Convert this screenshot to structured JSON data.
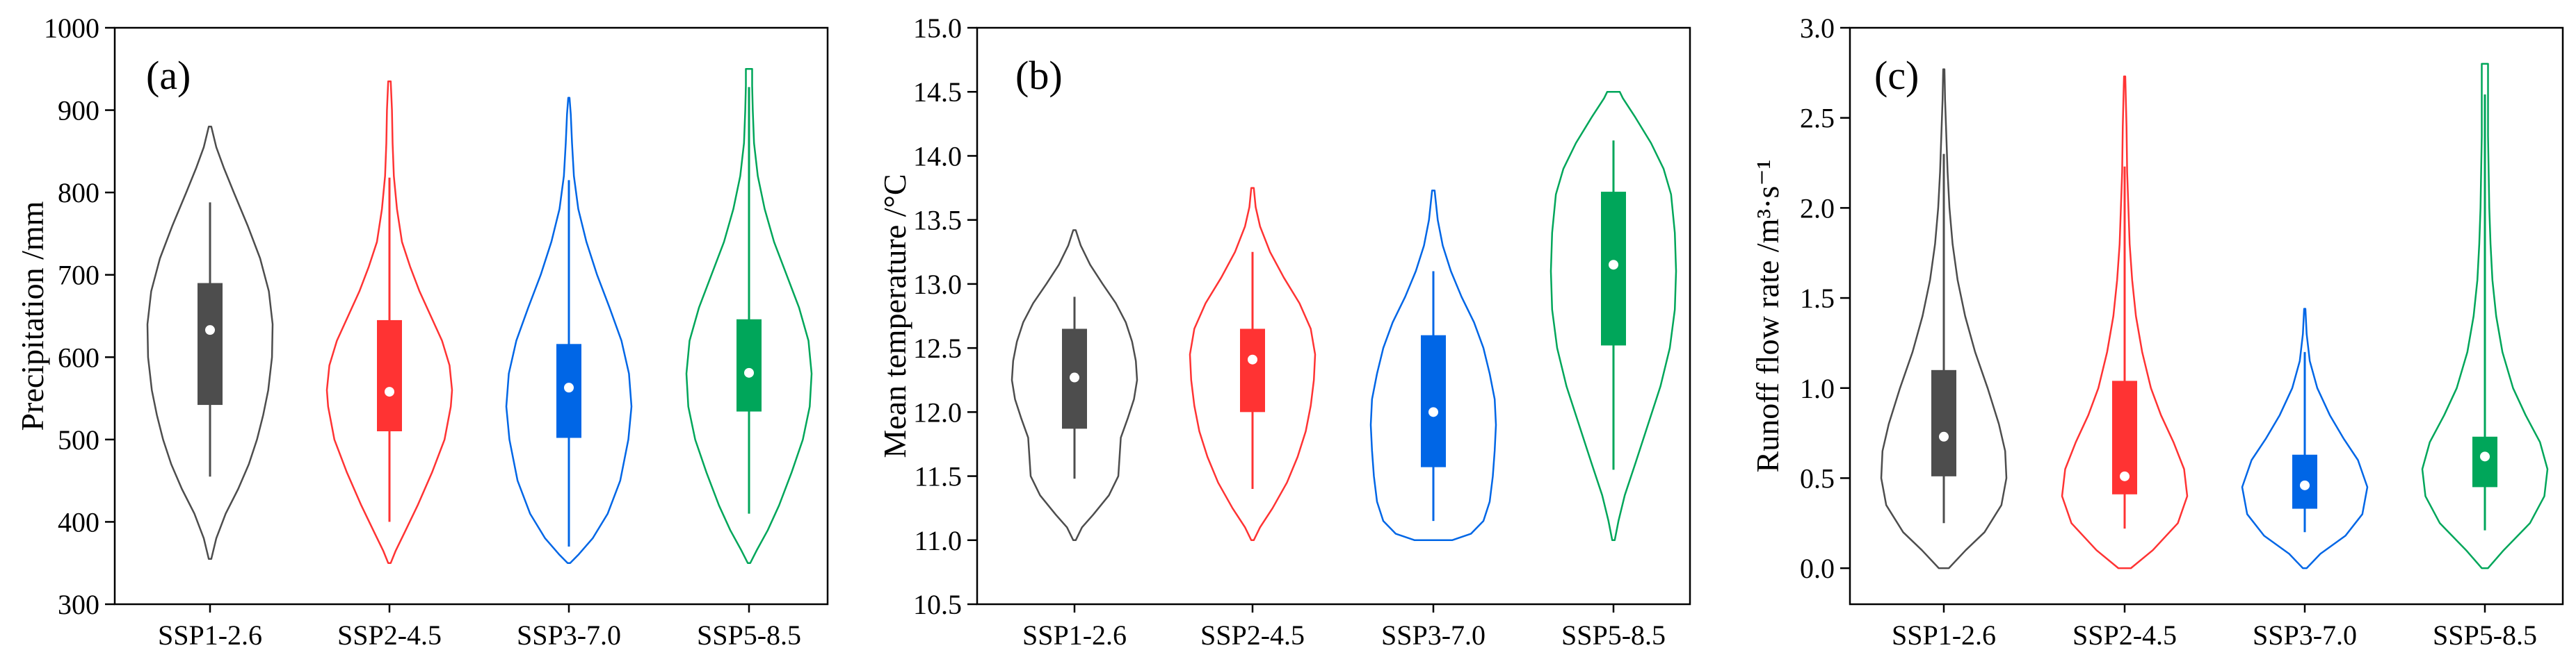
{
  "chart_data": [
    {
      "type": "violin",
      "panel_label": "(a)",
      "ylabel": "Precipitation /mm",
      "ylim": [
        300,
        1000
      ],
      "yticks": [
        "300",
        "400",
        "500",
        "600",
        "700",
        "800",
        "900",
        "1000"
      ],
      "categories": [
        "SSP1-2.6",
        "SSP2-4.5",
        "SSP3-7.0",
        "SSP5-8.5"
      ],
      "series": [
        {
          "name": "SSP1-2.6",
          "color": "#4d4d4d",
          "min": 355,
          "max": 880,
          "whisker_low": 455,
          "whisker_high": 788,
          "q1": 542,
          "q3": 690,
          "median": 633,
          "density": [
            [
              355,
              0.02
            ],
            [
              380,
              0.1
            ],
            [
              410,
              0.25
            ],
            [
              440,
              0.45
            ],
            [
              470,
              0.62
            ],
            [
              500,
              0.75
            ],
            [
              530,
              0.85
            ],
            [
              560,
              0.93
            ],
            [
              600,
              0.99
            ],
            [
              640,
              1.0
            ],
            [
              680,
              0.94
            ],
            [
              720,
              0.8
            ],
            [
              760,
              0.6
            ],
            [
              800,
              0.38
            ],
            [
              830,
              0.22
            ],
            [
              855,
              0.1
            ],
            [
              880,
              0.02
            ]
          ]
        },
        {
          "name": "SSP2-4.5",
          "color": "#ff3333",
          "min": 350,
          "max": 935,
          "whisker_low": 400,
          "whisker_high": 818,
          "q1": 510,
          "q3": 645,
          "median": 558,
          "density": [
            [
              350,
              0.02
            ],
            [
              365,
              0.1
            ],
            [
              390,
              0.26
            ],
            [
              420,
              0.45
            ],
            [
              460,
              0.68
            ],
            [
              500,
              0.88
            ],
            [
              540,
              0.98
            ],
            [
              560,
              1.0
            ],
            [
              590,
              0.96
            ],
            [
              620,
              0.84
            ],
            [
              650,
              0.66
            ],
            [
              680,
              0.48
            ],
            [
              710,
              0.33
            ],
            [
              740,
              0.2
            ],
            [
              780,
              0.12
            ],
            [
              820,
              0.07
            ],
            [
              860,
              0.05
            ],
            [
              900,
              0.04
            ],
            [
              935,
              0.02
            ]
          ]
        },
        {
          "name": "SSP3-7.0",
          "color": "#0066e6",
          "min": 350,
          "max": 915,
          "whisker_low": 370,
          "whisker_high": 815,
          "q1": 502,
          "q3": 616,
          "median": 563,
          "density": [
            [
              350,
              0.02
            ],
            [
              360,
              0.15
            ],
            [
              380,
              0.38
            ],
            [
              410,
              0.62
            ],
            [
              450,
              0.82
            ],
            [
              500,
              0.95
            ],
            [
              540,
              1.0
            ],
            [
              580,
              0.96
            ],
            [
              620,
              0.84
            ],
            [
              660,
              0.65
            ],
            [
              700,
              0.45
            ],
            [
              740,
              0.28
            ],
            [
              780,
              0.15
            ],
            [
              820,
              0.08
            ],
            [
              860,
              0.05
            ],
            [
              895,
              0.03
            ],
            [
              915,
              0.01
            ]
          ]
        },
        {
          "name": "SSP5-8.5",
          "color": "#00a65a",
          "min": 350,
          "max": 950,
          "whisker_low": 410,
          "whisker_high": 928,
          "q1": 534,
          "q3": 646,
          "median": 581,
          "density": [
            [
              350,
              0.02
            ],
            [
              365,
              0.12
            ],
            [
              390,
              0.3
            ],
            [
              420,
              0.48
            ],
            [
              460,
              0.68
            ],
            [
              500,
              0.86
            ],
            [
              540,
              0.97
            ],
            [
              580,
              1.0
            ],
            [
              620,
              0.95
            ],
            [
              660,
              0.8
            ],
            [
              700,
              0.6
            ],
            [
              740,
              0.4
            ],
            [
              780,
              0.25
            ],
            [
              820,
              0.14
            ],
            [
              860,
              0.08
            ],
            [
              900,
              0.06
            ],
            [
              930,
              0.05
            ],
            [
              950,
              0.05
            ]
          ]
        }
      ]
    },
    {
      "type": "violin",
      "panel_label": "(b)",
      "ylabel": "Mean temperature /°C",
      "ylim": [
        10.5,
        15.0
      ],
      "yticks": [
        "10.5",
        "11.0",
        "11.5",
        "12.0",
        "12.5",
        "13.0",
        "13.5",
        "14.0",
        "14.5",
        "15.0"
      ],
      "categories": [
        "SSP1-2.6",
        "SSP2-4.5",
        "SSP3-7.0",
        "SSP5-8.5"
      ],
      "series": [
        {
          "name": "SSP1-2.6",
          "color": "#4d4d4d",
          "min": 11.0,
          "max": 13.42,
          "whisker_low": 11.48,
          "whisker_high": 12.9,
          "q1": 11.87,
          "q3": 12.65,
          "median": 12.27,
          "density": [
            [
              11.0,
              0.02
            ],
            [
              11.1,
              0.12
            ],
            [
              11.2,
              0.3
            ],
            [
              11.35,
              0.55
            ],
            [
              11.5,
              0.7
            ],
            [
              11.65,
              0.72
            ],
            [
              11.8,
              0.74
            ],
            [
              11.95,
              0.85
            ],
            [
              12.1,
              0.95
            ],
            [
              12.25,
              1.0
            ],
            [
              12.4,
              0.98
            ],
            [
              12.55,
              0.92
            ],
            [
              12.7,
              0.82
            ],
            [
              12.85,
              0.66
            ],
            [
              13.0,
              0.45
            ],
            [
              13.15,
              0.25
            ],
            [
              13.3,
              0.1
            ],
            [
              13.42,
              0.02
            ]
          ]
        },
        {
          "name": "SSP2-4.5",
          "color": "#ff3333",
          "min": 11.0,
          "max": 13.75,
          "whisker_low": 11.4,
          "whisker_high": 13.25,
          "q1": 12.0,
          "q3": 12.65,
          "median": 12.41,
          "density": [
            [
              11.0,
              0.02
            ],
            [
              11.1,
              0.12
            ],
            [
              11.25,
              0.32
            ],
            [
              11.45,
              0.55
            ],
            [
              11.65,
              0.72
            ],
            [
              11.85,
              0.85
            ],
            [
              12.05,
              0.93
            ],
            [
              12.25,
              0.98
            ],
            [
              12.45,
              1.0
            ],
            [
              12.65,
              0.93
            ],
            [
              12.85,
              0.75
            ],
            [
              13.05,
              0.5
            ],
            [
              13.25,
              0.28
            ],
            [
              13.45,
              0.12
            ],
            [
              13.6,
              0.05
            ],
            [
              13.75,
              0.02
            ]
          ]
        },
        {
          "name": "SSP3-7.0",
          "color": "#0066e6",
          "min": 11.0,
          "max": 13.73,
          "whisker_low": 11.15,
          "whisker_high": 13.1,
          "q1": 11.57,
          "q3": 12.6,
          "median": 12.0,
          "density": [
            [
              11.0,
              0.3
            ],
            [
              11.05,
              0.6
            ],
            [
              11.15,
              0.8
            ],
            [
              11.3,
              0.9
            ],
            [
              11.5,
              0.95
            ],
            [
              11.7,
              0.98
            ],
            [
              11.9,
              1.0
            ],
            [
              12.1,
              0.98
            ],
            [
              12.3,
              0.9
            ],
            [
              12.5,
              0.8
            ],
            [
              12.7,
              0.65
            ],
            [
              12.9,
              0.45
            ],
            [
              13.1,
              0.28
            ],
            [
              13.3,
              0.15
            ],
            [
              13.5,
              0.07
            ],
            [
              13.73,
              0.02
            ]
          ]
        },
        {
          "name": "SSP5-8.5",
          "color": "#00a65a",
          "min": 11.0,
          "max": 14.5,
          "whisker_low": 11.55,
          "whisker_high": 14.12,
          "q1": 12.52,
          "q3": 13.72,
          "median": 13.15,
          "density": [
            [
              11.0,
              0.02
            ],
            [
              11.15,
              0.08
            ],
            [
              11.35,
              0.18
            ],
            [
              11.6,
              0.35
            ],
            [
              11.9,
              0.55
            ],
            [
              12.2,
              0.75
            ],
            [
              12.5,
              0.9
            ],
            [
              12.8,
              0.98
            ],
            [
              13.1,
              1.0
            ],
            [
              13.4,
              0.98
            ],
            [
              13.7,
              0.92
            ],
            [
              13.9,
              0.8
            ],
            [
              14.1,
              0.6
            ],
            [
              14.3,
              0.35
            ],
            [
              14.45,
              0.15
            ],
            [
              14.5,
              0.1
            ]
          ]
        }
      ]
    },
    {
      "type": "violin",
      "panel_label": "(c)",
      "ylabel": "Runoff flow rate /m³·s⁻¹",
      "ylim": [
        -0.2,
        3.0
      ],
      "yticks": [
        "0.0",
        "0.5",
        "1.0",
        "1.5",
        "2.0",
        "2.5",
        "3.0"
      ],
      "categories": [
        "SSP1-2.6",
        "SSP2-4.5",
        "SSP3-7.0",
        "SSP5-8.5"
      ],
      "series": [
        {
          "name": "SSP1-2.6",
          "color": "#4d4d4d",
          "min": 0.0,
          "max": 2.77,
          "whisker_low": 0.25,
          "whisker_high": 2.3,
          "q1": 0.51,
          "q3": 1.1,
          "median": 0.73,
          "density": [
            [
              0.0,
              0.08
            ],
            [
              0.1,
              0.35
            ],
            [
              0.2,
              0.65
            ],
            [
              0.35,
              0.92
            ],
            [
              0.5,
              1.0
            ],
            [
              0.65,
              0.98
            ],
            [
              0.8,
              0.88
            ],
            [
              1.0,
              0.7
            ],
            [
              1.2,
              0.5
            ],
            [
              1.4,
              0.34
            ],
            [
              1.6,
              0.22
            ],
            [
              1.8,
              0.14
            ],
            [
              2.0,
              0.09
            ],
            [
              2.2,
              0.06
            ],
            [
              2.4,
              0.04
            ],
            [
              2.6,
              0.02
            ],
            [
              2.77,
              0.01
            ]
          ]
        },
        {
          "name": "SSP2-4.5",
          "color": "#ff3333",
          "min": 0.0,
          "max": 2.73,
          "whisker_low": 0.22,
          "whisker_high": 2.23,
          "q1": 0.41,
          "q3": 1.04,
          "median": 0.51,
          "density": [
            [
              0.0,
              0.1
            ],
            [
              0.1,
              0.45
            ],
            [
              0.25,
              0.85
            ],
            [
              0.4,
              1.0
            ],
            [
              0.55,
              0.95
            ],
            [
              0.7,
              0.78
            ],
            [
              0.85,
              0.58
            ],
            [
              1.0,
              0.42
            ],
            [
              1.2,
              0.28
            ],
            [
              1.4,
              0.18
            ],
            [
              1.6,
              0.12
            ],
            [
              1.8,
              0.08
            ],
            [
              2.0,
              0.06
            ],
            [
              2.2,
              0.04
            ],
            [
              2.45,
              0.03
            ],
            [
              2.73,
              0.01
            ]
          ]
        },
        {
          "name": "SSP3-7.0",
          "color": "#0066e6",
          "min": 0.0,
          "max": 1.44,
          "whisker_low": 0.2,
          "whisker_high": 1.2,
          "q1": 0.33,
          "q3": 0.63,
          "median": 0.46,
          "density": [
            [
              0.0,
              0.03
            ],
            [
              0.08,
              0.25
            ],
            [
              0.18,
              0.65
            ],
            [
              0.3,
              0.92
            ],
            [
              0.45,
              1.0
            ],
            [
              0.6,
              0.85
            ],
            [
              0.72,
              0.62
            ],
            [
              0.85,
              0.4
            ],
            [
              1.0,
              0.2
            ],
            [
              1.15,
              0.08
            ],
            [
              1.3,
              0.03
            ],
            [
              1.44,
              0.01
            ]
          ]
        },
        {
          "name": "SSP5-8.5",
          "color": "#00a65a",
          "min": 0.0,
          "max": 2.8,
          "whisker_low": 0.21,
          "whisker_high": 2.63,
          "q1": 0.45,
          "q3": 0.73,
          "median": 0.62,
          "density": [
            [
              0.0,
              0.05
            ],
            [
              0.1,
              0.3
            ],
            [
              0.25,
              0.72
            ],
            [
              0.4,
              0.95
            ],
            [
              0.55,
              1.0
            ],
            [
              0.7,
              0.88
            ],
            [
              0.85,
              0.65
            ],
            [
              1.0,
              0.45
            ],
            [
              1.2,
              0.28
            ],
            [
              1.4,
              0.18
            ],
            [
              1.6,
              0.12
            ],
            [
              1.8,
              0.09
            ],
            [
              2.0,
              0.07
            ],
            [
              2.2,
              0.06
            ],
            [
              2.4,
              0.05
            ],
            [
              2.6,
              0.05
            ],
            [
              2.8,
              0.05
            ]
          ]
        }
      ]
    }
  ]
}
